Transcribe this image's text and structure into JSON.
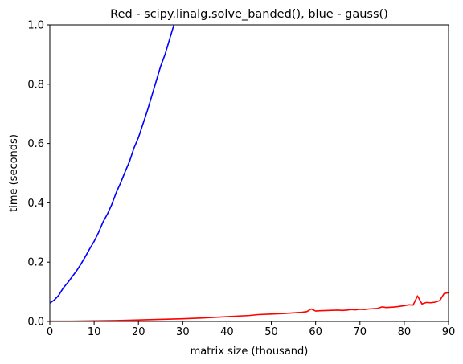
{
  "chart_data": {
    "type": "line",
    "title": "Red - scipy.linalg.solve_banded(), blue - gauss()",
    "xlabel": "matrix size (thousand)",
    "ylabel": "time (seconds)",
    "xlim": [
      0,
      90
    ],
    "ylim": [
      0,
      1.0
    ],
    "x_ticks": [
      0,
      10,
      20,
      30,
      40,
      50,
      60,
      70,
      80,
      90
    ],
    "y_ticks": [
      0.0,
      0.2,
      0.4,
      0.6,
      0.8,
      1.0
    ],
    "x_tick_labels": [
      "0",
      "10",
      "20",
      "30",
      "40",
      "50",
      "60",
      "70",
      "80",
      "90"
    ],
    "y_tick_labels": [
      "0.0",
      "0.2",
      "0.4",
      "0.6",
      "0.8",
      "1.0"
    ],
    "grid": false,
    "series": [
      {
        "color": "#0000ff",
        "x": [
          0,
          1,
          2,
          3,
          4,
          5,
          6,
          7,
          8,
          9,
          10,
          11,
          12,
          13,
          14,
          15,
          16,
          17,
          18,
          19,
          20,
          21,
          22,
          23,
          24,
          25,
          26,
          27,
          28,
          29
        ],
        "y": [
          0.062,
          0.072,
          0.088,
          0.112,
          0.13,
          0.15,
          0.17,
          0.193,
          0.218,
          0.245,
          0.27,
          0.3,
          0.335,
          0.362,
          0.395,
          0.435,
          0.468,
          0.505,
          0.54,
          0.585,
          0.62,
          0.665,
          0.71,
          0.76,
          0.81,
          0.86,
          0.9,
          0.95,
          1.0,
          1.05
        ]
      },
      {
        "color": "#ff0000",
        "x": [
          0,
          5,
          10,
          15,
          20,
          25,
          30,
          35,
          40,
          45,
          47,
          50,
          53,
          55,
          57,
          58,
          59,
          60,
          61,
          63,
          65,
          66,
          67,
          68,
          69,
          70,
          71,
          72,
          73,
          74,
          75,
          76,
          78,
          80,
          81,
          82,
          83,
          84,
          85,
          86,
          87,
          88,
          89,
          90
        ],
        "y": [
          0.001,
          0.001,
          0.002,
          0.003,
          0.005,
          0.007,
          0.009,
          0.012,
          0.016,
          0.02,
          0.023,
          0.025,
          0.027,
          0.029,
          0.031,
          0.033,
          0.042,
          0.035,
          0.036,
          0.037,
          0.038,
          0.037,
          0.038,
          0.04,
          0.039,
          0.041,
          0.04,
          0.042,
          0.043,
          0.044,
          0.049,
          0.047,
          0.049,
          0.053,
          0.056,
          0.055,
          0.086,
          0.059,
          0.064,
          0.063,
          0.065,
          0.07,
          0.094,
          0.097
        ]
      }
    ]
  }
}
